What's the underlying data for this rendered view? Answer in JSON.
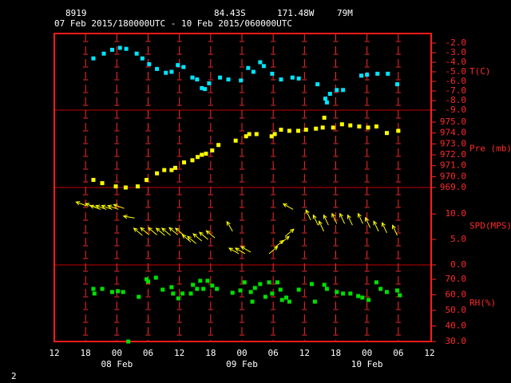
{
  "header": {
    "station": "8919",
    "latitude": "84.43S",
    "longitude": "171.48W",
    "elevation": "79M",
    "period": "07 Feb 2015/180000UTC - 10 Feb 2015/060000UTC",
    "page": "2"
  },
  "x_axis": {
    "xlim": [
      0,
      72
    ],
    "xticks": [
      {
        "value": 0,
        "label": "12"
      },
      {
        "value": 6,
        "label": "18"
      },
      {
        "value": 12,
        "label": "00"
      },
      {
        "value": 18,
        "label": "06"
      },
      {
        "value": 24,
        "label": "12"
      },
      {
        "value": 30,
        "label": "18"
      },
      {
        "value": 36,
        "label": "00"
      },
      {
        "value": 42,
        "label": "06"
      },
      {
        "value": 48,
        "label": "12"
      },
      {
        "value": 54,
        "label": "18"
      },
      {
        "value": 60,
        "label": "00"
      },
      {
        "value": 66,
        "label": "06"
      },
      {
        "value": 72,
        "label": "12"
      }
    ],
    "dates": [
      {
        "value": 12,
        "label": "08 Feb"
      },
      {
        "value": 36,
        "label": "09 Feb"
      },
      {
        "value": 60,
        "label": "10 Feb"
      }
    ],
    "grid": true
  },
  "chart_data": [
    {
      "type": "scatter",
      "label": "T(C)",
      "color": "#00e5ff",
      "ylim": [
        -9,
        -1
      ],
      "yticks": [
        {
          "value": -2,
          "label": "-2.0"
        },
        {
          "value": -3,
          "label": "-3.0"
        },
        {
          "value": -4,
          "label": "-4.0"
        },
        {
          "value": -5,
          "label": "-5.0"
        },
        {
          "value": -6,
          "label": "-6.0"
        },
        {
          "value": -7,
          "label": "-7.0"
        },
        {
          "value": -8,
          "label": "-8.0"
        },
        {
          "value": -9,
          "label": "-9.0"
        }
      ],
      "x": [
        7.5,
        9.5,
        11.1,
        12.6,
        13.8,
        15.8,
        16.9,
        18.2,
        19.7,
        21.4,
        22.5,
        23.7,
        24.8,
        26.5,
        27.4,
        28.3,
        28.9,
        29.7,
        31.8,
        33.4,
        35.8,
        37.2,
        38.2,
        39.5,
        40.2,
        41.8,
        43.5,
        45.7,
        46.9,
        50.5,
        52.0,
        52.3,
        52.9,
        54.2,
        55.4,
        58.9,
        60.0,
        62.0,
        64.0,
        65.8
      ],
      "values": [
        -3.6,
        -3.1,
        -2.7,
        -2.5,
        -2.6,
        -3.1,
        -3.6,
        -4.2,
        -4.7,
        -5.1,
        -5.0,
        -4.3,
        -4.5,
        -5.6,
        -5.8,
        -6.7,
        -6.8,
        -6.2,
        -5.6,
        -5.8,
        -5.9,
        -4.6,
        -5.0,
        -4.0,
        -4.4,
        -5.2,
        -5.8,
        -5.6,
        -5.7,
        -6.3,
        -7.8,
        -8.2,
        -7.3,
        -6.9,
        -6.9,
        -5.4,
        -5.3,
        -5.2,
        -5.2,
        -6.3
      ]
    },
    {
      "type": "scatter",
      "label": "Pre (mb)",
      "color": "#ffff00",
      "ylim": [
        969,
        976.1
      ],
      "yticks": [
        {
          "value": 975,
          "label": "975.0"
        },
        {
          "value": 974,
          "label": "974.0"
        },
        {
          "value": 973,
          "label": "973.0"
        },
        {
          "value": 972,
          "label": "972.0"
        },
        {
          "value": 971,
          "label": "971.0"
        },
        {
          "value": 970,
          "label": "970.0"
        },
        {
          "value": 969,
          "label": "969.0"
        }
      ],
      "x": [
        7.5,
        9.2,
        11.8,
        13.7,
        16.0,
        17.7,
        19.7,
        21.1,
        22.5,
        23.2,
        24.9,
        26.5,
        27.5,
        28.3,
        29.1,
        30.3,
        31.5,
        34.8,
        36.8,
        37.4,
        38.8,
        41.7,
        42.3,
        43.5,
        45.1,
        46.8,
        48.3,
        50.2,
        51.5,
        51.8,
        53.5,
        55.2,
        56.8,
        58.5,
        60.2,
        61.8,
        63.8,
        66.0
      ],
      "values": [
        969.7,
        969.4,
        969.1,
        969.0,
        969.1,
        969.7,
        970.3,
        970.6,
        970.6,
        970.8,
        971.3,
        971.5,
        971.8,
        972.0,
        972.1,
        972.4,
        972.9,
        973.3,
        973.7,
        973.9,
        973.9,
        973.7,
        973.9,
        974.3,
        974.2,
        974.2,
        974.3,
        974.4,
        974.5,
        975.4,
        974.5,
        974.8,
        974.7,
        974.6,
        974.5,
        974.6,
        974.0,
        974.2
      ]
    },
    {
      "type": "wind",
      "label": "SPD(MPS)",
      "color": "#ffff00",
      "ylim": [
        0,
        15.2
      ],
      "yticks": [
        {
          "value": 10,
          "label": "10.0"
        },
        {
          "value": 5,
          "label": "5.0"
        },
        {
          "value": 0,
          "label": "0.0"
        }
      ],
      "x": [
        6.2,
        8.0,
        8.9,
        10.0,
        11.1,
        12.3,
        13.4,
        15.4,
        16.9,
        18.2,
        19.7,
        21.2,
        22.3,
        23.7,
        24.9,
        26.2,
        27.2,
        28.3,
        29.5,
        30.8,
        34.2,
        35.4,
        36.6,
        37.7,
        41.2,
        42.3,
        43.4,
        44.3,
        45.8,
        49.2,
        50.6,
        51.7,
        52.6,
        54.2,
        55.7,
        57.2,
        59.2,
        60.6,
        62.2,
        63.8,
        65.8
      ],
      "values": [
        11.6,
        11.3,
        10.9,
        10.9,
        10.9,
        10.9,
        11.1,
        9.2,
        5.8,
        5.9,
        5.9,
        5.8,
        5.8,
        5.9,
        5.8,
        4.5,
        4.2,
        4.7,
        5.0,
        5.3,
        6.6,
        2.2,
        2.2,
        2.5,
        2.2,
        3.4,
        4.2,
        5.6,
        10.9,
        8.8,
        7.8,
        6.6,
        7.8,
        8.1,
        8.1,
        7.8,
        8.1,
        7.3,
        6.6,
        6.3,
        5.8
      ],
      "directions": [
        160,
        160,
        160,
        160,
        160,
        160,
        160,
        170,
        140,
        140,
        140,
        140,
        140,
        140,
        140,
        140,
        140,
        140,
        140,
        140,
        120,
        150,
        150,
        150,
        40,
        40,
        40,
        40,
        150,
        115,
        115,
        115,
        115,
        115,
        115,
        115,
        115,
        115,
        115,
        115,
        115
      ]
    },
    {
      "type": "scatter",
      "label": "RH(%)",
      "color": "#00e000",
      "ylim": [
        30,
        79.2
      ],
      "yticks": [
        {
          "value": 70,
          "label": "70.0"
        },
        {
          "value": 60,
          "label": "60.0"
        },
        {
          "value": 50,
          "label": "50.0"
        },
        {
          "value": 40,
          "label": "40.0"
        },
        {
          "value": 30,
          "label": "30.0"
        }
      ],
      "x": [
        7.5,
        7.7,
        9.2,
        11.1,
        12.2,
        13.2,
        14.2,
        16.2,
        17.7,
        18.0,
        19.5,
        20.8,
        22.5,
        22.8,
        23.8,
        24.6,
        26.2,
        26.6,
        27.4,
        28.0,
        28.6,
        29.4,
        30.3,
        31.2,
        34.2,
        35.7,
        36.5,
        37.7,
        38.0,
        38.5,
        39.5,
        40.5,
        41.2,
        41.8,
        42.8,
        43.4,
        43.7,
        44.5,
        45.1,
        46.9,
        49.4,
        50.0,
        51.8,
        52.3,
        54.2,
        55.4,
        56.8,
        58.3,
        59.1,
        60.3,
        61.8,
        62.6,
        63.8,
        65.8,
        66.3
      ],
      "values": [
        63.8,
        60.8,
        63.8,
        61.8,
        62.3,
        61.8,
        30.0,
        58.7,
        70.0,
        68.5,
        71.0,
        63.3,
        64.9,
        60.8,
        57.7,
        60.8,
        60.8,
        66.4,
        63.8,
        69.0,
        63.8,
        69.0,
        65.9,
        63.8,
        61.3,
        62.8,
        68.0,
        61.8,
        55.6,
        64.4,
        66.9,
        58.7,
        68.0,
        60.8,
        68.0,
        63.3,
        56.7,
        58.2,
        55.6,
        63.3,
        66.9,
        55.6,
        66.4,
        63.8,
        61.8,
        60.8,
        60.8,
        59.2,
        58.2,
        56.7,
        68.0,
        63.8,
        61.8,
        62.8,
        59.7
      ]
    }
  ]
}
